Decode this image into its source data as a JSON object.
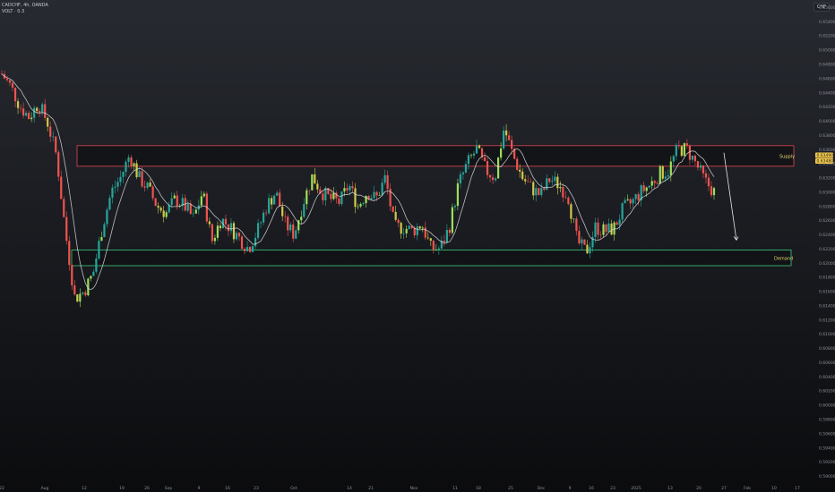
{
  "header": {
    "symbol_line": "CADCHF, 4h, OANDA",
    "indicator_line": "VOLT · 0.3"
  },
  "currency_badge": "CHF",
  "price_badges": {
    "last_price": "0.63490",
    "countdown": "0.63480"
  },
  "zones": {
    "supply_label": "Supply",
    "demand_label": "Demand"
  },
  "colors": {
    "background_top": "#272a30",
    "background_bottom": "#0b0c0e",
    "bull": "#26a69a",
    "bull_bright": "#9be05a",
    "bear": "#ef5350",
    "neutral_candle": "#d4c84a",
    "supply_border": "#e0464e",
    "demand_border": "#3ec87a",
    "ma_line": "#e6e6e6",
    "price_badge": "#f2c94c"
  },
  "chart_data": {
    "type": "candlestick",
    "y_axis_ticks": [
      "0.65600",
      "0.65400",
      "0.65200",
      "0.65000",
      "0.64800",
      "0.64600",
      "0.64400",
      "0.64200",
      "0.64000",
      "0.63800",
      "0.63600",
      "0.63400",
      "0.63200",
      "0.63000",
      "0.62800",
      "0.62600",
      "0.62400",
      "0.62200",
      "0.62000",
      "0.61800",
      "0.61600",
      "0.61400",
      "0.61200",
      "0.61000",
      "0.60800",
      "0.60600",
      "0.60400",
      "0.60200",
      "0.60000",
      "0.59800",
      "0.59600",
      "0.59400",
      "0.59200",
      "0.59000"
    ],
    "x_axis_ticks": [
      "22",
      "Aug",
      "12",
      "19",
      "26",
      "Sep",
      "9",
      "16",
      "23",
      "Oct",
      "14",
      "21",
      "Nov",
      "11",
      "18",
      "25",
      "Dec",
      "9",
      "16",
      "23",
      "2025",
      "13",
      "20",
      "27",
      "Feb",
      "10",
      "17"
    ],
    "ylim": [
      0.5895,
      0.6565
    ],
    "zones": [
      {
        "name": "Supply",
        "from": 0.6336,
        "to": 0.6365
      },
      {
        "name": "Demand",
        "from": 0.6196,
        "to": 0.6218
      }
    ],
    "close_path": [
      0.6466,
      0.6448,
      0.642,
      0.6405,
      0.6425,
      0.6398,
      0.635,
      0.624,
      0.615,
      0.616,
      0.6185,
      0.625,
      0.63,
      0.632,
      0.6352,
      0.632,
      0.6305,
      0.628,
      0.627,
      0.629,
      0.628,
      0.6262,
      0.63,
      0.623,
      0.6262,
      0.625,
      0.6235,
      0.622,
      0.6245,
      0.628,
      0.63,
      0.6255,
      0.624,
      0.6285,
      0.6322,
      0.63,
      0.629,
      0.6285,
      0.631,
      0.628,
      0.63,
      0.629,
      0.632,
      0.625,
      0.625,
      0.6245,
      0.6255,
      0.622,
      0.622,
      0.625,
      0.631,
      0.634,
      0.636,
      0.633,
      0.632,
      0.639,
      0.635,
      0.632,
      0.6305,
      0.6295,
      0.6318,
      0.631,
      0.6295,
      0.623,
      0.6215,
      0.625,
      0.6245,
      0.6248,
      0.6275,
      0.6285,
      0.63,
      0.631,
      0.6325,
      0.633,
      0.636,
      0.636,
      0.634,
      0.6315,
      0.63
    ],
    "last_price": 0.6349
  }
}
